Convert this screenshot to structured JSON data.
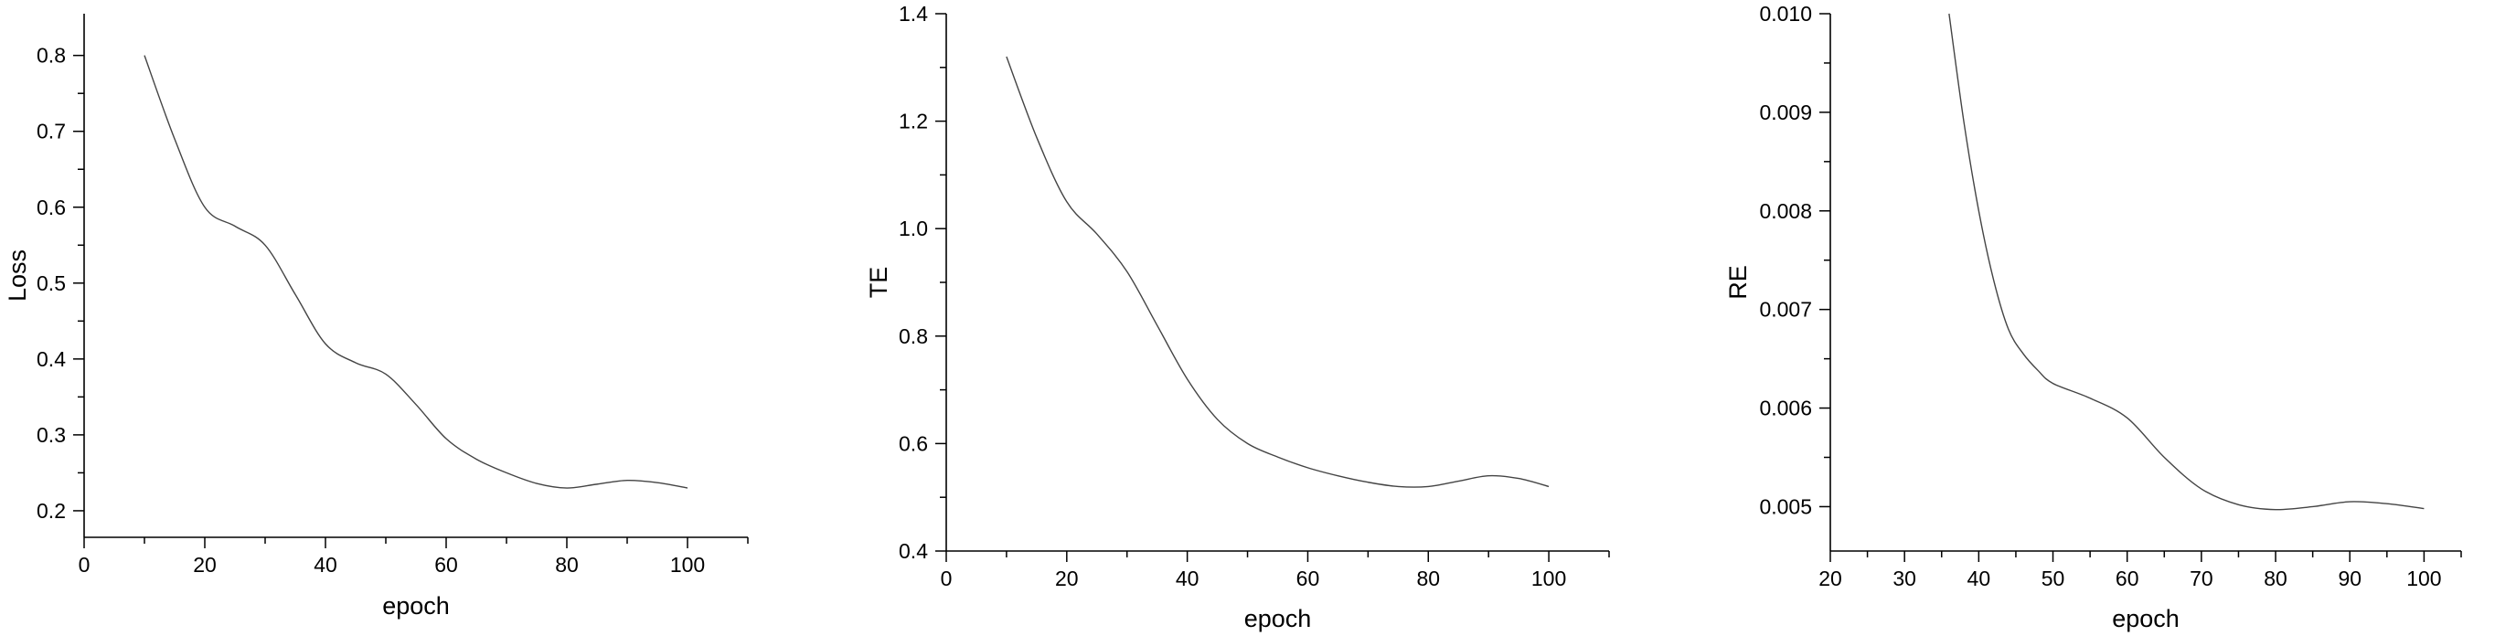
{
  "chart_data": [
    {
      "type": "line",
      "xlabel": "epoch",
      "ylabel": "Loss",
      "xlim": [
        0,
        110
      ],
      "ylim": [
        0.165,
        0.855
      ],
      "xticks": [
        0,
        20,
        40,
        60,
        80,
        100
      ],
      "xminor": [
        10,
        30,
        50,
        70,
        90,
        110
      ],
      "yticks": [
        0.2,
        0.3,
        0.4,
        0.5,
        0.6,
        0.7,
        0.8
      ],
      "yminor": [
        0.25,
        0.35,
        0.45,
        0.55,
        0.65,
        0.75
      ],
      "ytick_labels": [
        "0.2",
        "0.3",
        "0.4",
        "0.5",
        "0.6",
        "0.7",
        "0.8"
      ],
      "xtick_labels": [
        "0",
        "20",
        "40",
        "60",
        "80",
        "100"
      ],
      "series": [
        {
          "x": [
            10,
            15,
            20,
            25,
            30,
            35,
            40,
            45,
            50,
            55,
            60,
            65,
            70,
            75,
            80,
            85,
            90,
            95,
            100
          ],
          "y": [
            0.8,
            0.69,
            0.6,
            0.575,
            0.55,
            0.485,
            0.42,
            0.395,
            0.38,
            0.34,
            0.295,
            0.268,
            0.25,
            0.236,
            0.23,
            0.235,
            0.24,
            0.237,
            0.23
          ]
        }
      ]
    },
    {
      "type": "line",
      "xlabel": "epoch",
      "ylabel": "TE",
      "xlim": [
        0,
        110
      ],
      "ylim": [
        0.4,
        1.4
      ],
      "xticks": [
        0,
        20,
        40,
        60,
        80,
        100
      ],
      "xminor": [
        10,
        30,
        50,
        70,
        90,
        110
      ],
      "yticks": [
        0.4,
        0.6,
        0.8,
        1.0,
        1.2,
        1.4
      ],
      "yminor": [
        0.5,
        0.7,
        0.9,
        1.1,
        1.3
      ],
      "ytick_labels": [
        "0.4",
        "0.6",
        "0.8",
        "1.0",
        "1.2",
        "1.4"
      ],
      "xtick_labels": [
        "0",
        "20",
        "40",
        "60",
        "80",
        "100"
      ],
      "series": [
        {
          "x": [
            10,
            15,
            20,
            25,
            30,
            35,
            40,
            45,
            50,
            55,
            60,
            65,
            70,
            75,
            80,
            85,
            90,
            95,
            100
          ],
          "y": [
            1.32,
            1.17,
            1.05,
            0.99,
            0.92,
            0.82,
            0.72,
            0.645,
            0.6,
            0.575,
            0.555,
            0.54,
            0.528,
            0.52,
            0.52,
            0.53,
            0.54,
            0.535,
            0.52
          ]
        }
      ]
    },
    {
      "type": "line",
      "xlabel": "epoch",
      "ylabel": "RE",
      "xlim": [
        20,
        105
      ],
      "ylim": [
        0.00455,
        0.01
      ],
      "xticks": [
        20,
        30,
        40,
        50,
        60,
        70,
        80,
        90,
        100
      ],
      "xminor": [
        25,
        35,
        45,
        55,
        65,
        75,
        85,
        95,
        105
      ],
      "yticks": [
        0.005,
        0.006,
        0.007,
        0.008,
        0.009,
        0.01
      ],
      "yminor": [
        0.0055,
        0.0065,
        0.0075,
        0.0085,
        0.0095
      ],
      "ytick_labels": [
        "0.005",
        "0.006",
        "0.007",
        "0.008",
        "0.009",
        "0.010"
      ],
      "xtick_labels": [
        "20",
        "30",
        "40",
        "50",
        "60",
        "70",
        "80",
        "90",
        "100"
      ],
      "series": [
        {
          "x": [
            36,
            38,
            40,
            42,
            44,
            46,
            48,
            50,
            55,
            60,
            65,
            70,
            75,
            80,
            85,
            90,
            95,
            100
          ],
          "y": [
            0.01,
            0.0089,
            0.008,
            0.0073,
            0.0068,
            0.00655,
            0.00638,
            0.00625,
            0.0061,
            0.0059,
            0.0055,
            0.00518,
            0.00502,
            0.00497,
            0.005,
            0.00505,
            0.00503,
            0.00498
          ]
        }
      ]
    }
  ]
}
